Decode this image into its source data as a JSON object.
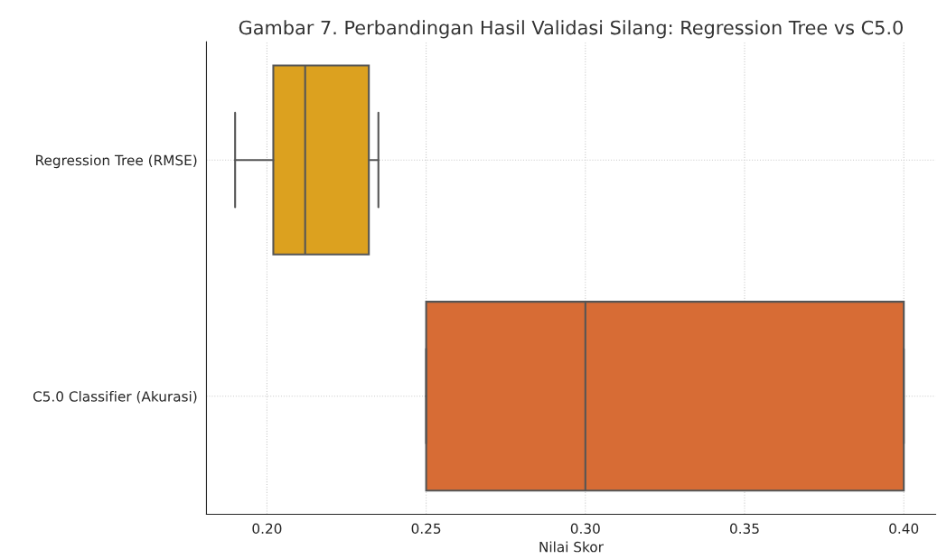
{
  "chart_data": {
    "type": "box",
    "orientation": "horizontal",
    "title": "Gambar 7. Perbandingan Hasil Validasi Silang: Regression Tree vs C5.0",
    "xlabel": "Nilai Skor",
    "categories": [
      "Regression Tree (RMSE)",
      "C5.0 Classifier (Akurasi)"
    ],
    "boxes": [
      {
        "low": 0.19,
        "q1": 0.202,
        "median": 0.212,
        "q3": 0.232,
        "high": 0.235
      },
      {
        "low": 0.25,
        "q1": 0.25,
        "median": 0.3,
        "q3": 0.4,
        "high": 0.4
      }
    ],
    "colors": [
      "#dca11f",
      "#d76c35"
    ],
    "xlim": [
      0.181,
      0.41
    ],
    "xticks": [
      {
        "value": 0.2,
        "label": "0.20"
      },
      {
        "value": 0.25,
        "label": "0.25"
      },
      {
        "value": 0.3,
        "label": "0.30"
      },
      {
        "value": 0.35,
        "label": "0.35"
      },
      {
        "value": 0.4,
        "label": "0.40"
      }
    ],
    "grid": true
  }
}
